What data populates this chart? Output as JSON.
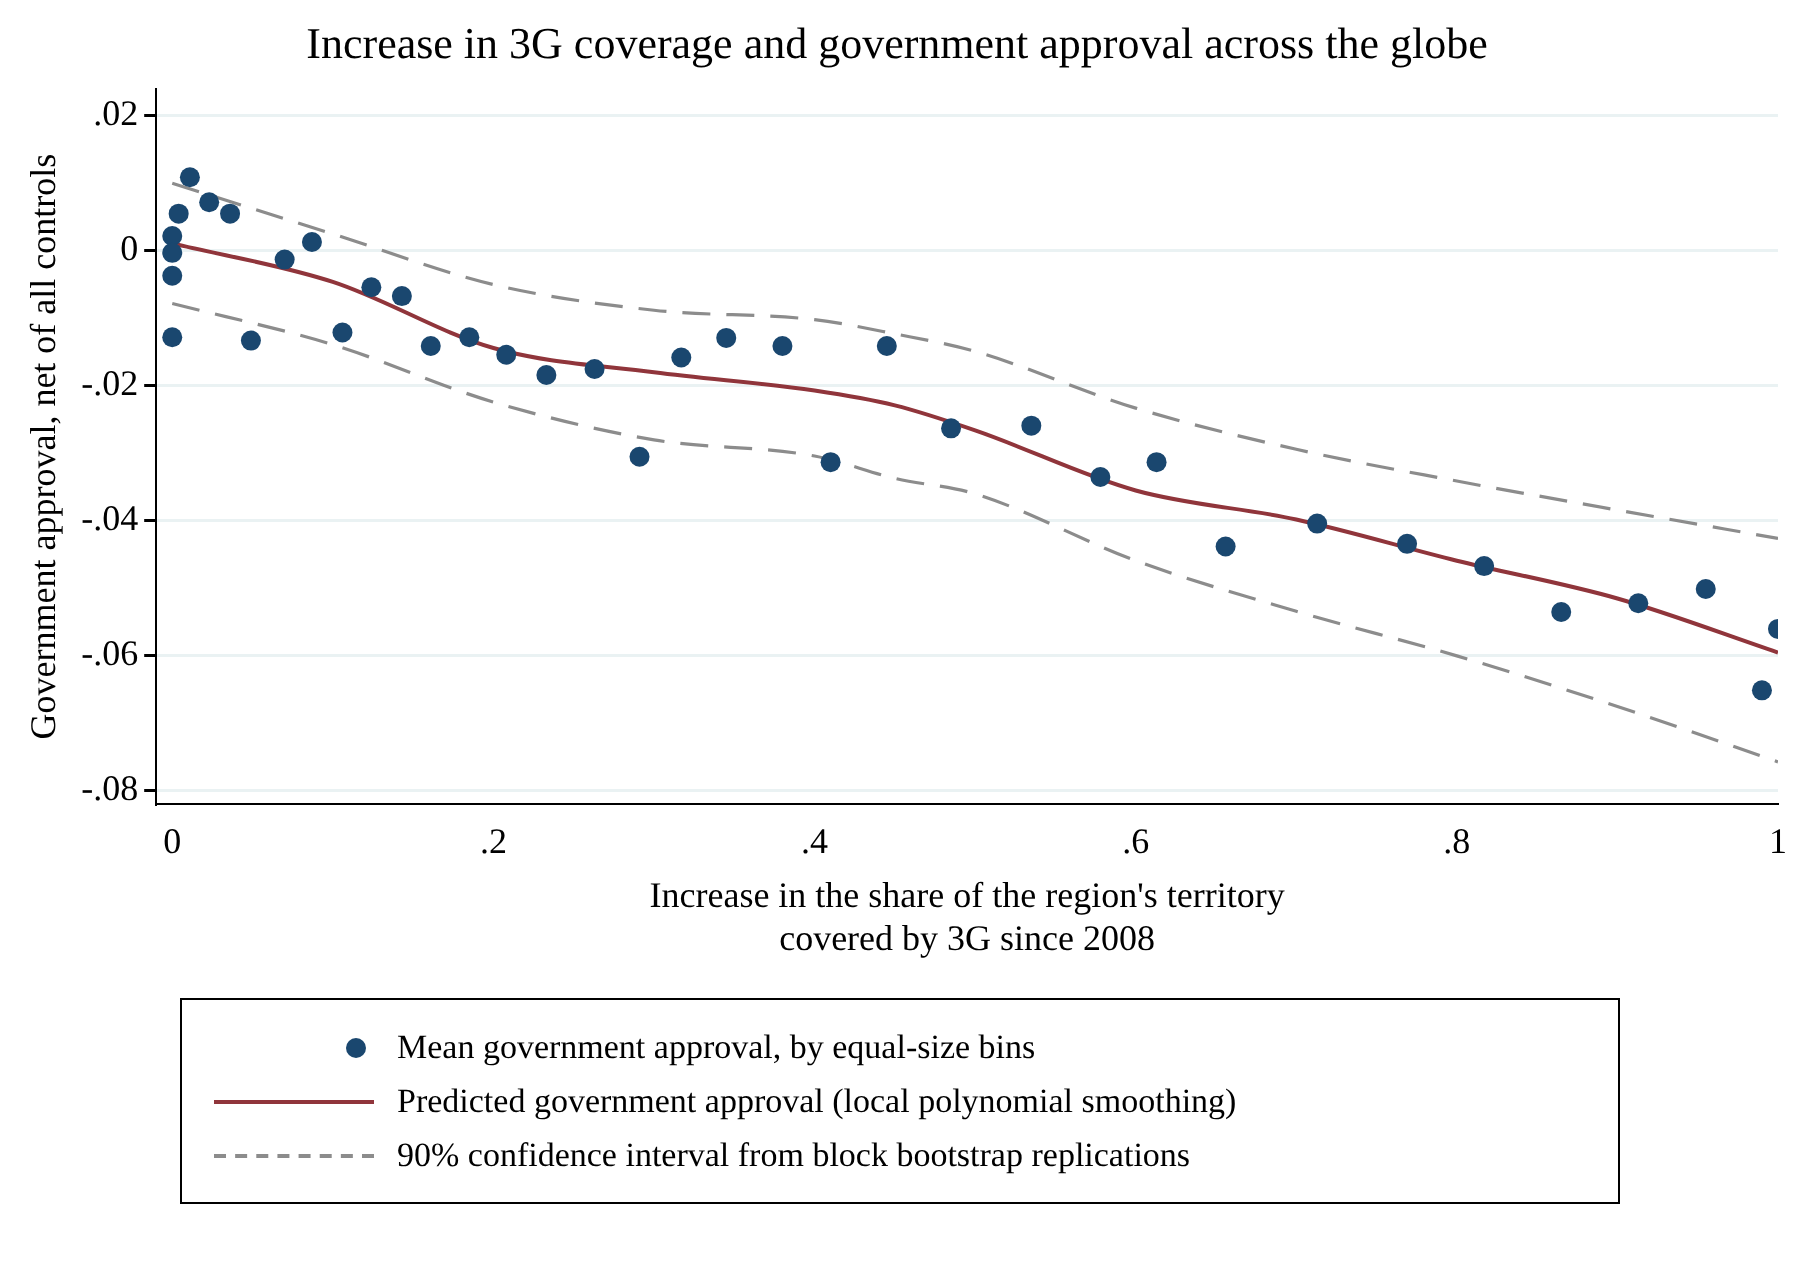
{
  "chart_data": {
    "type": "scatter",
    "title": "Increase in 3G coverage and government approval across the globe",
    "xlabel": "Increase in the share of the region's territory\ncovered by 3G since 2008",
    "ylabel": "Government approval, net of all controls",
    "xlim": [
      -0.01,
      1.0
    ],
    "xticks": [
      0,
      {
        "value": 0.2,
        "label": ".2"
      },
      {
        "value": 0.4,
        "label": ".4"
      },
      {
        "value": 0.6,
        "label": ".6"
      },
      {
        "value": 0.8,
        "label": ".8"
      },
      1
    ],
    "ylim": [
      -0.082,
      0.024
    ],
    "yticks": [
      {
        "value": -0.08,
        "label": "-.08"
      },
      {
        "value": -0.06,
        "label": "-.06"
      },
      {
        "value": -0.04,
        "label": "-.04"
      },
      {
        "value": -0.02,
        "label": "-.02"
      },
      0,
      {
        "value": 0.02,
        "label": ".02"
      }
    ],
    "grid": "y",
    "legend": "bottom",
    "series": [
      {
        "name": "Mean government approval, by equal-size bins",
        "marker": "circle",
        "color": "#1a476f",
        "x": [
          0,
          0,
          0,
          0,
          0.004,
          0.011,
          0.023,
          0.036,
          0.049,
          0.07,
          0.087,
          0.106,
          0.124,
          0.143,
          0.161,
          0.185,
          0.208,
          0.233,
          0.263,
          0.291,
          0.317,
          0.345,
          0.38,
          0.41,
          0.445,
          0.485,
          0.535,
          0.578,
          0.613,
          0.656,
          0.713,
          0.769,
          0.817,
          0.865,
          0.913,
          0.955,
          0.99,
          1.0
        ],
        "values": [
          0.0022,
          -0.0003,
          -0.0037,
          -0.0128,
          0.0055,
          0.0109,
          0.0072,
          0.0055,
          -0.0133,
          -0.0013,
          0.0013,
          -0.0121,
          -0.0054,
          -0.0067,
          -0.0141,
          -0.0128,
          -0.0154,
          -0.0184,
          -0.0175,
          -0.0305,
          -0.0158,
          -0.0129,
          -0.0141,
          -0.0313,
          -0.0141,
          -0.0263,
          -0.0259,
          -0.0335,
          -0.0313,
          -0.0438,
          -0.0404,
          -0.0434,
          -0.0467,
          -0.0535,
          -0.0522,
          -0.0501,
          -0.0651,
          -0.056
        ]
      },
      {
        "name": "Predicted government approval (local polynomial smoothing)",
        "type": "line",
        "marker": "none",
        "line_style": "solid",
        "color": "#90353b",
        "x": [
          0,
          0.1,
          0.2,
          0.3,
          0.4,
          0.45,
          0.5,
          0.6,
          0.7,
          0.8,
          0.9,
          1.0
        ],
        "values": [
          0.0011,
          -0.0046,
          -0.0144,
          -0.018,
          -0.0207,
          -0.0229,
          -0.0266,
          -0.0355,
          -0.0398,
          -0.0459,
          -0.0515,
          -0.0595
        ]
      },
      {
        "name": "90% confidence interval from block bootstrap replications",
        "type": "line",
        "marker": "none",
        "line_style": "dashed",
        "color": "#8c8c8c",
        "x": [
          0,
          0.1,
          0.2,
          0.3,
          0.4,
          0.45,
          0.5,
          0.6,
          0.7,
          0.8,
          0.9,
          1.0
        ],
        "values": [
          0.01,
          0.0025,
          -0.005,
          -0.0088,
          -0.0102,
          -0.0123,
          -0.0149,
          -0.0233,
          -0.0294,
          -0.0341,
          -0.0384,
          -0.0426
        ]
      },
      {
        "type": "line",
        "marker": "none",
        "line_style": "dashed",
        "color": "#8c8c8c",
        "x": [
          0,
          0.1,
          0.2,
          0.3,
          0.4,
          0.45,
          0.5,
          0.6,
          0.7,
          0.8,
          0.9,
          1.0
        ],
        "values": [
          -0.0078,
          -0.0139,
          -0.0224,
          -0.028,
          -0.0304,
          -0.0337,
          -0.036,
          -0.0459,
          -0.0534,
          -0.06,
          -0.0675,
          -0.0757
        ]
      }
    ]
  }
}
